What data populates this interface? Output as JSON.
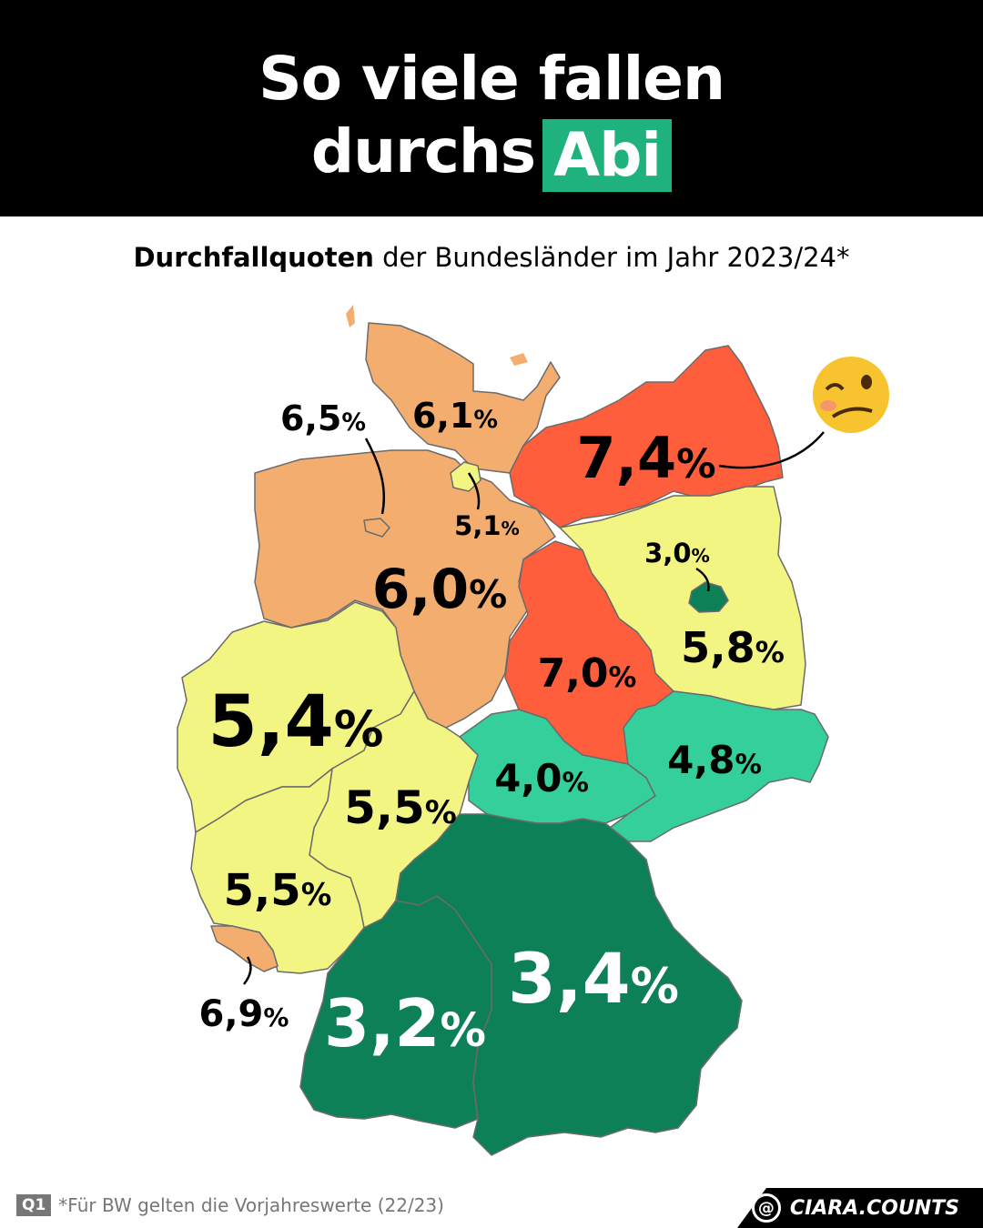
{
  "header": {
    "title_line1": "So viele fallen",
    "title_line2_prefix": "durchs",
    "title_line2_highlight": "Abi"
  },
  "subtitle": {
    "bold": "Durchfallquoten",
    "rest": " der Bundesländer im Jahr 2023/24*"
  },
  "colors": {
    "header_bg": "#000000",
    "highlight": "#1fb27c",
    "red": "#ff5e3c",
    "orange": "#f3ae6f",
    "yellow": "#f2f581",
    "mint": "#35cf9c",
    "dark_green": "#0d8058"
  },
  "emoji_icon": "woozy-face-icon",
  "states": [
    {
      "id": "schleswig-holstein",
      "value": "6,1",
      "color": "orange"
    },
    {
      "id": "hamburg",
      "value": "5,1",
      "color": "yellow"
    },
    {
      "id": "bremen",
      "value": "6,5",
      "color": "orange"
    },
    {
      "id": "mecklenburg-vorpommern",
      "value": "7,4",
      "color": "red"
    },
    {
      "id": "niedersachsen",
      "value": "6,0",
      "color": "orange"
    },
    {
      "id": "berlin",
      "value": "3,0",
      "color": "dark_green"
    },
    {
      "id": "brandenburg",
      "value": "5,8",
      "color": "yellow"
    },
    {
      "id": "sachsen-anhalt",
      "value": "7,0",
      "color": "red"
    },
    {
      "id": "nordrhein-westfalen",
      "value": "5,4",
      "color": "yellow"
    },
    {
      "id": "hessen",
      "value": "5,5",
      "color": "yellow"
    },
    {
      "id": "thueringen",
      "value": "4,0",
      "color": "mint"
    },
    {
      "id": "sachsen",
      "value": "4,8",
      "color": "mint"
    },
    {
      "id": "rheinland-pfalz",
      "value": "5,5",
      "color": "yellow"
    },
    {
      "id": "saarland",
      "value": "6,9",
      "color": "orange"
    },
    {
      "id": "baden-wuerttemberg",
      "value": "3,2",
      "color": "dark_green"
    },
    {
      "id": "bayern",
      "value": "3,4",
      "color": "dark_green"
    }
  ],
  "percent_sign": "%",
  "footer": {
    "badge": "Q1",
    "note": "*Für BW gelten die Vorjahreswerte (22/23)",
    "brand": "CIARA.COUNTS",
    "brand_icon": "at-sign-icon"
  }
}
